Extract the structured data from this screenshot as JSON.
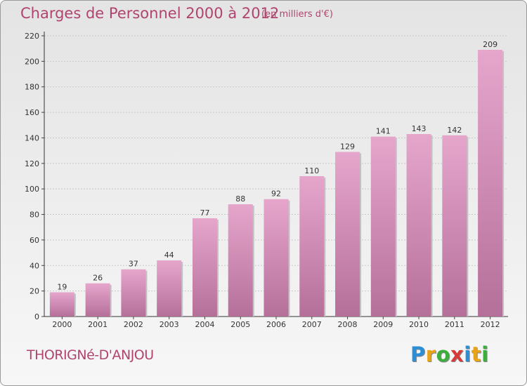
{
  "header": {
    "title": "Charges de Personnel 2000 à 2012",
    "subtitle": "(en milliers d'€)"
  },
  "footer": {
    "town": "THORIGNé-D'ANJOU",
    "brand": "Proxiti"
  },
  "colors": {
    "accent": "#b0446e",
    "bar_light": "#e6a6cc",
    "bar_dark": "#b5709a"
  },
  "chart_data": {
    "type": "bar",
    "title": "Charges de Personnel 2000 à 2012",
    "subtitle": "(en milliers d'€)",
    "xlabel": "",
    "ylabel": "",
    "categories": [
      "2000",
      "2001",
      "2002",
      "2003",
      "2004",
      "2005",
      "2006",
      "2007",
      "2008",
      "2009",
      "2010",
      "2011",
      "2012"
    ],
    "values": [
      19,
      26,
      37,
      44,
      77,
      88,
      92,
      110,
      129,
      141,
      143,
      142,
      209
    ],
    "ylim": [
      0,
      220
    ],
    "yticks": [
      0,
      20,
      40,
      60,
      80,
      100,
      120,
      140,
      160,
      180,
      200,
      220
    ],
    "grid": true,
    "legend": "none"
  }
}
